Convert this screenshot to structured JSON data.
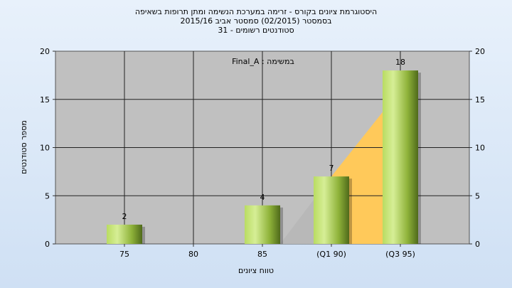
{
  "chart_data": {
    "type": "bar",
    "title_lines": [
      "היסטוגרמת ציונים בקורס - זרימה במערכת הנשימה ומתן תרופות בשאיפה",
      "בסמסטר  (02/2015)  סמסטר אביב 2015/16",
      "סטודנטים רשומים - 31"
    ],
    "categories": [
      "75",
      "80",
      "85",
      "(Q1 90)",
      "(Q3 95)"
    ],
    "values": [
      2,
      0,
      4,
      7,
      18
    ],
    "data_labels": [
      "2",
      "",
      "4",
      "7",
      "18"
    ],
    "ylim": [
      0,
      20
    ],
    "yticks": [
      "0",
      "5",
      "10",
      "15",
      "20"
    ],
    "xlabel": "טווח ציונים",
    "ylabel": "מספר סטודנטים",
    "annotation": "במשימה : Final_A",
    "grid": true,
    "colors": {
      "plot_bg": "#c0c0c0",
      "bar_light": "#cde88a",
      "bar_dark": "#4f6a1a",
      "area_orange": "#ffc95a",
      "area_grey": "#b8b8b8"
    }
  }
}
